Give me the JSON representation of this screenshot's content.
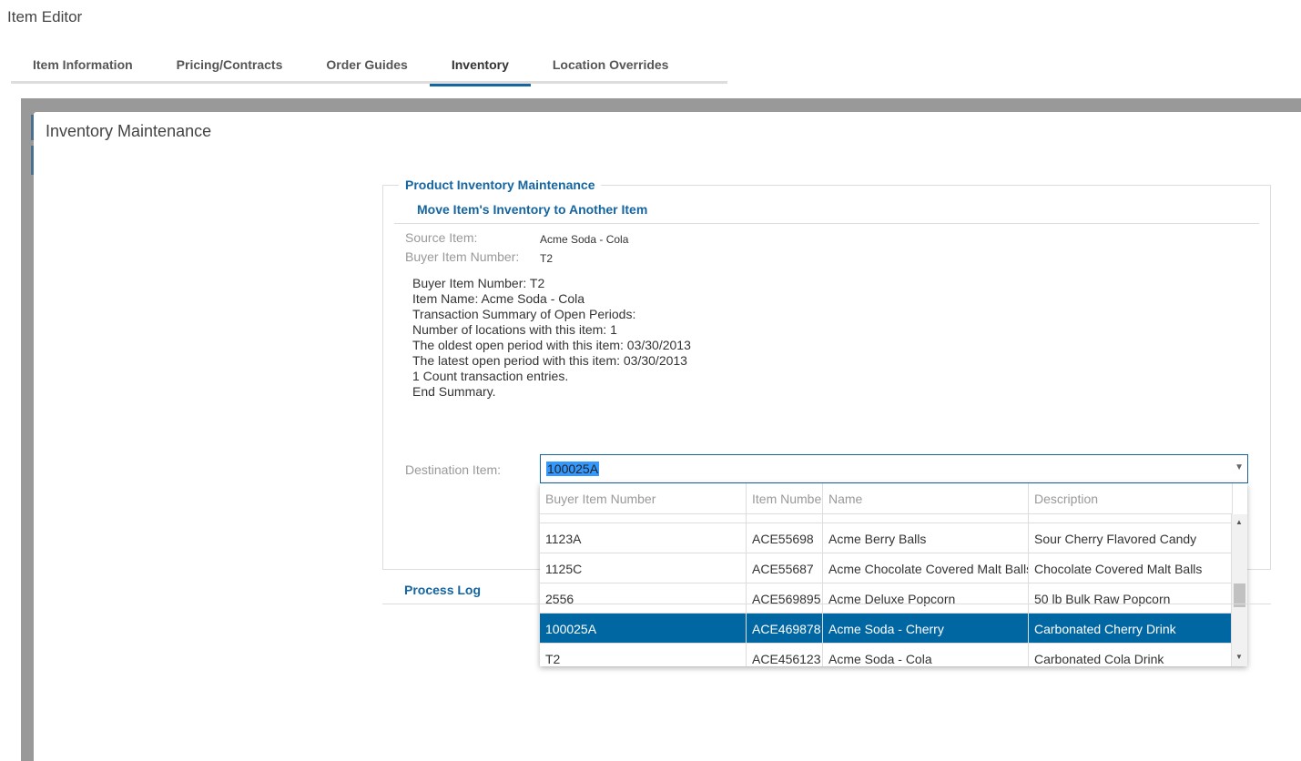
{
  "app_title": "Item Editor",
  "tabs": [
    {
      "label": "Item Information"
    },
    {
      "label": "Pricing/Contracts"
    },
    {
      "label": "Order Guides"
    },
    {
      "label": "Inventory",
      "active": true
    },
    {
      "label": "Location Overrides"
    }
  ],
  "panel": {
    "title": "Inventory Maintenance"
  },
  "section": {
    "legend": "Product Inventory Maintenance",
    "subheading": "Move Item's Inventory to Another Item",
    "source_item_label": "Source Item:",
    "source_item_value": "Acme Soda - Cola",
    "buyer_item_label": "Buyer Item Number:",
    "buyer_item_value": "T2",
    "summary": [
      "Buyer Item Number: T2",
      "Item Name: Acme Soda - Cola",
      "Transaction Summary of Open Periods:",
      "Number of locations with this item: 1",
      "The oldest open period with this item: 03/30/2013",
      "The latest open period with this item: 03/30/2013",
      "1 Count transaction entries.",
      "End Summary."
    ],
    "destination_label": "Destination Item:",
    "destination_value": "100025A"
  },
  "dropdown": {
    "columns": [
      "Buyer Item Number",
      "Item Number",
      "Name",
      "Description"
    ],
    "rows": [
      {
        "buyer": "1123A",
        "item": "ACE55698",
        "name": "Acme Berry Balls",
        "desc": "Sour Cherry Flavored Candy"
      },
      {
        "buyer": "1125C",
        "item": "ACE55687",
        "name": "Acme Chocolate Covered Malt Balls",
        "desc": "Chocolate Covered Malt Balls"
      },
      {
        "buyer": "2556",
        "item": "ACE569895",
        "name": "Acme Deluxe Popcorn",
        "desc": "50 lb Bulk Raw Popcorn"
      },
      {
        "buyer": "100025A",
        "item": "ACE469878",
        "name": "Acme Soda - Cherry",
        "desc": "Carbonated Cherry Drink",
        "selected": true
      },
      {
        "buyer": "T2",
        "item": "ACE456123",
        "name": "Acme Soda - Cola",
        "desc": "Carbonated Cola Drink"
      }
    ],
    "selected_color": "#0067a3"
  },
  "process_log": "Process Log"
}
